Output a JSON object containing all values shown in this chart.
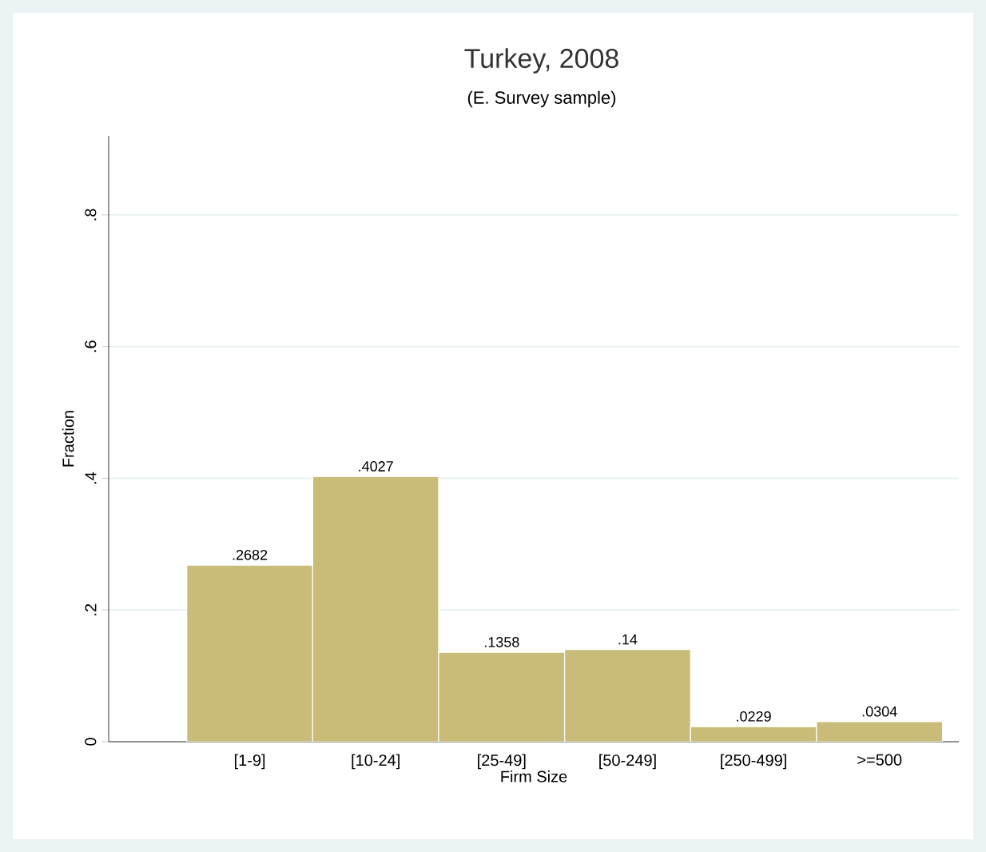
{
  "chart_data": {
    "type": "bar",
    "title": "Turkey, 2008",
    "subtitle": "(E. Survey sample)",
    "xlabel": "Firm Size",
    "ylabel": "Fraction",
    "categories": [
      "[1-9]",
      "[10-24]",
      "[25-49]",
      "[50-249]",
      "[250-499]",
      ">=500"
    ],
    "values": [
      0.2682,
      0.4027,
      0.1358,
      0.14,
      0.0229,
      0.0304
    ],
    "value_labels": [
      ".2682",
      ".4027",
      ".1358",
      ".14",
      ".0229",
      ".0304"
    ],
    "color": "#c8bc78",
    "ylim": [
      0,
      0.92
    ],
    "yticks": [
      0,
      {
        "value": 0.2,
        "label": ".2"
      },
      {
        "value": 0.4,
        "label": ".4"
      },
      {
        "value": 0.6,
        "label": ".6"
      },
      {
        "value": 0.8,
        "label": ".8"
      }
    ],
    "grid": "y"
  }
}
